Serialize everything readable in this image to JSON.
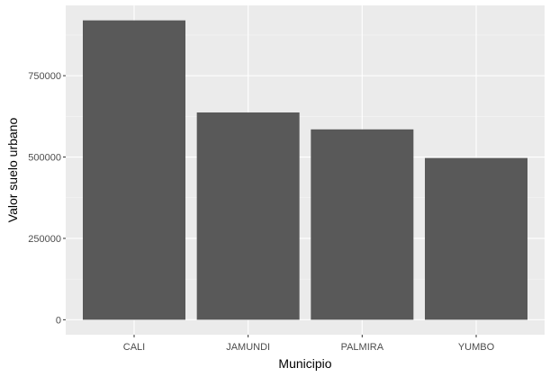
{
  "chart_data": {
    "type": "bar",
    "title": "",
    "xlabel": "Municipio",
    "ylabel": "Valor suelo urbano",
    "categories": [
      "CALI",
      "JAMUNDI",
      "PALMIRA",
      "YUMBO"
    ],
    "values": [
      920000,
      637000,
      585000,
      497000
    ],
    "yticks": [
      0,
      250000,
      500000,
      750000
    ],
    "ytick_labels": [
      "0",
      "250000",
      "500000",
      "750000"
    ],
    "ylim": [
      -46000,
      966000
    ],
    "grid": true,
    "legend": "none"
  },
  "colors": {
    "panel_background": "#ebebeb",
    "grid_major": "#ffffff",
    "grid_minor": "#f5f5f5",
    "bar_fill": "#595959",
    "tick_text": "#4d4d4d",
    "tick_mark": "#333333",
    "axis_title": "#000000"
  }
}
